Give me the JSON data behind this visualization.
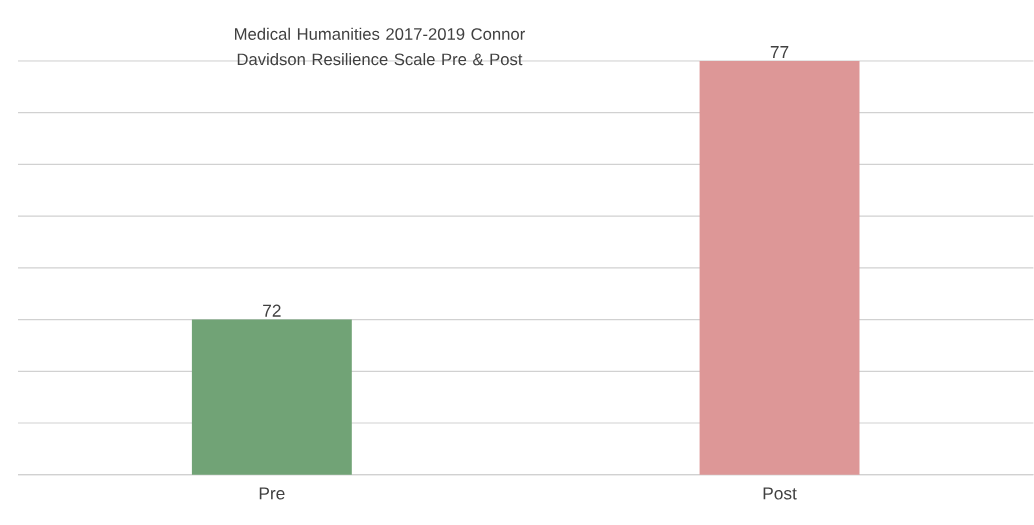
{
  "chart_data": {
    "type": "bar",
    "title": "Medical Humanities 2017-2019 Connor Davidson Resilience Scale Pre & Post",
    "categories": [
      "Pre",
      "Post"
    ],
    "values": [
      72,
      77
    ],
    "colors": [
      "#71a376",
      "#dd9797"
    ],
    "ylim": [
      69,
      77
    ],
    "yticks": [
      {
        "value": 69,
        "label": null
      },
      {
        "value": 70,
        "label": null
      },
      {
        "value": 71,
        "label": null
      },
      {
        "value": 72,
        "label": null
      },
      {
        "value": 73,
        "label": null
      },
      {
        "value": 74,
        "label": null
      },
      {
        "value": 75,
        "label": null
      },
      {
        "value": 76,
        "label": null
      },
      {
        "value": 77,
        "label": null
      }
    ],
    "grid": "y",
    "data_labels": true,
    "tick_labels": "x"
  }
}
